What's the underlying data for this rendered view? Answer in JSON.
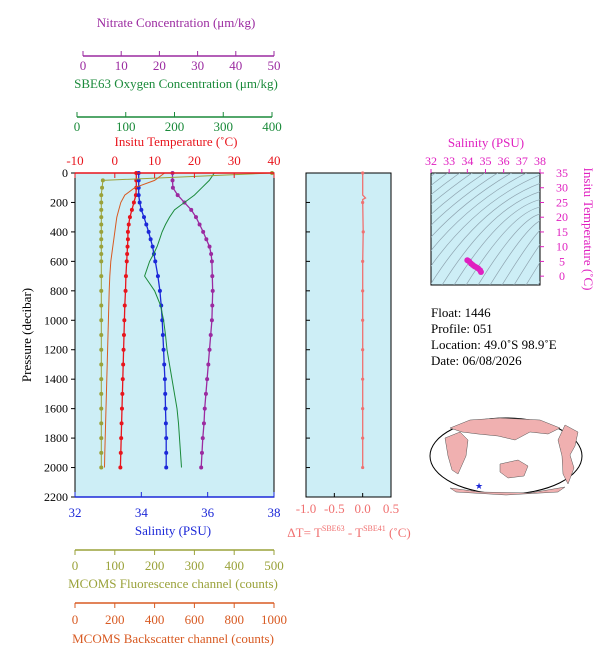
{
  "colors": {
    "nitrate": "#9b2aa0",
    "oxygen": "#1a8a3a",
    "temperature": "#e8141c",
    "salinity": "#1c28d8",
    "fluorescence": "#9aa23a",
    "backscatter": "#d85a22",
    "dt": "#f07070",
    "ts_axis": "#e020c0",
    "panel_bg": "#cdeef6"
  },
  "axes": {
    "nitrate": {
      "label": "Nitrate Concentration (μm/kg)",
      "ticks": [
        "0",
        "10",
        "20",
        "30",
        "40",
        "50"
      ]
    },
    "oxygen": {
      "label": "SBE63 Oxygen Concentration (μm/kg)",
      "ticks": [
        "0",
        "100",
        "200",
        "300",
        "400"
      ]
    },
    "temperature": {
      "label": "Insitu Temperature (˚C)",
      "ticks": [
        "-10",
        "0",
        "10",
        "20",
        "30",
        "40"
      ]
    },
    "salinity": {
      "label": "Salinity (PSU)",
      "ticks": [
        "32",
        "34",
        "36",
        "38"
      ]
    },
    "fluorescence": {
      "label": "MCOMS Fluorescence channel (counts)",
      "ticks": [
        "0",
        "100",
        "200",
        "300",
        "400",
        "500"
      ]
    },
    "backscatter": {
      "label": "MCOMS Backscatter channel (counts)",
      "ticks": [
        "0",
        "200",
        "400",
        "600",
        "800",
        "1000"
      ]
    },
    "pressure": {
      "label": "Pressure (decibar)",
      "ticks": [
        "0",
        "200",
        "400",
        "600",
        "800",
        "1000",
        "1200",
        "1400",
        "1600",
        "1800",
        "2000",
        "2200"
      ]
    },
    "dt": {
      "label_main": "ΔT= T",
      "sup1": "SBE63",
      "label_mid": " - T",
      "sup2": "SBE41",
      "label_end": " (˚C)",
      "ticks": [
        "-1.0",
        "-0.5",
        "0.0",
        "0.5"
      ]
    },
    "ts_salinity": {
      "label": "Salinity (PSU)",
      "ticks": [
        "32",
        "33",
        "34",
        "35",
        "36",
        "37",
        "38"
      ]
    },
    "ts_temperature": {
      "label": "Insitu Temperature (˚C)",
      "ticks": [
        "0",
        "5",
        "10",
        "15",
        "20",
        "25",
        "30",
        "35"
      ]
    }
  },
  "info": {
    "float": "Float:  1446",
    "profile": "Profile:  051",
    "location": "Location:  49.0˚S  98.9˚E",
    "date": "Date:  06/08/2026"
  },
  "chart_data": [
    {
      "type": "line",
      "name_context": "profile",
      "ylabel": "Pressure (decibar)",
      "ylim": [
        2200,
        0
      ],
      "pressure": [
        0,
        50,
        100,
        150,
        200,
        250,
        300,
        350,
        400,
        450,
        500,
        550,
        600,
        700,
        800,
        900,
        1000,
        1100,
        1200,
        1300,
        1400,
        1500,
        1600,
        1700,
        1800,
        1900,
        2000
      ],
      "series": [
        {
          "name": "Insitu Temperature (˚C)",
          "xlim": [
            -10,
            40
          ],
          "values": [
            5.4,
            5.4,
            5.4,
            5.3,
            4.8,
            4.3,
            3.8,
            3.5,
            3.3,
            3.3,
            3.2,
            3.1,
            3.0,
            2.8,
            2.7,
            2.5,
            2.4,
            2.3,
            2.2,
            2.1,
            2.0,
            1.9,
            1.8,
            1.7,
            1.6,
            1.5,
            1.4
          ]
        },
        {
          "name": "Salinity (PSU)",
          "xlim": [
            32,
            38
          ],
          "values": [
            33.92,
            33.92,
            33.92,
            33.92,
            33.95,
            34.0,
            34.08,
            34.15,
            34.22,
            34.28,
            34.34,
            34.38,
            34.42,
            34.5,
            34.56,
            34.6,
            34.63,
            34.65,
            34.67,
            34.69,
            34.71,
            34.72,
            34.73,
            34.74,
            34.75,
            34.75,
            34.75
          ]
        },
        {
          "name": "Nitrate Concentration (μm/kg)",
          "xlim": [
            0,
            50
          ],
          "values": [
            24.5,
            24.5,
            24.6,
            25.8,
            27.5,
            29.2,
            30.4,
            31.3,
            32.2,
            33.0,
            33.8,
            34.2,
            34.4,
            34.5,
            34.6,
            34.5,
            34.4,
            34.1,
            33.8,
            33.5,
            33.2,
            32.9,
            32.6,
            32.4,
            32.1,
            31.9,
            31.7
          ]
        },
        {
          "name": "SBE63 Oxygen Concentration (μm/kg)",
          "xlim": [
            0,
            400
          ],
          "values": [
            280,
            270,
            255,
            240,
            220,
            200,
            190,
            182,
            175,
            170,
            165,
            158,
            150,
            140,
            160,
            172,
            178,
            182,
            185,
            190,
            195,
            200,
            205,
            208,
            210,
            212,
            214
          ]
        },
        {
          "name": "MCOMS Fluorescence channel (counts)",
          "xlim": [
            0,
            500
          ],
          "values": [
            495,
            70,
            68,
            66,
            66,
            66,
            66,
            66,
            66,
            66,
            66,
            66,
            66,
            66,
            66,
            66,
            66,
            66,
            66,
            66,
            66,
            66,
            66,
            66,
            66,
            66,
            66
          ]
        },
        {
          "name": "MCOMS Backscatter channel (counts)",
          "xlim": [
            0,
            1000
          ],
          "values": [
            450,
            400,
            300,
            250,
            230,
            220,
            210,
            205,
            200,
            195,
            190,
            185,
            180,
            175,
            172,
            170,
            168,
            166,
            164,
            162,
            160,
            158,
            156,
            154,
            152,
            150,
            148
          ]
        }
      ]
    },
    {
      "type": "line",
      "name_context": "delta_t",
      "xlim": [
        -1.0,
        0.5
      ],
      "ylim": [
        2200,
        0
      ],
      "pressure": [
        0,
        150,
        170,
        180,
        200,
        400,
        600,
        800,
        1000,
        1200,
        1400,
        1600,
        1800,
        2000
      ],
      "values": [
        0.0,
        0.0,
        0.05,
        0.0,
        0.0,
        0.01,
        0.0,
        0.0,
        0.0,
        0.0,
        0.0,
        0.0,
        0.0,
        0.0
      ]
    },
    {
      "type": "scatter",
      "name_context": "ts_diagram",
      "xlabel": "Salinity (PSU)",
      "ylabel": "Insitu Temperature (˚C)",
      "xlim": [
        32,
        38
      ],
      "ylim": [
        -3,
        35
      ],
      "x": [
        34.0,
        34.1,
        34.2,
        34.3,
        34.4,
        34.5,
        34.6,
        34.7,
        34.75
      ],
      "y": [
        5.4,
        5.0,
        4.3,
        3.8,
        3.3,
        3.0,
        2.6,
        2.0,
        1.4
      ]
    }
  ]
}
